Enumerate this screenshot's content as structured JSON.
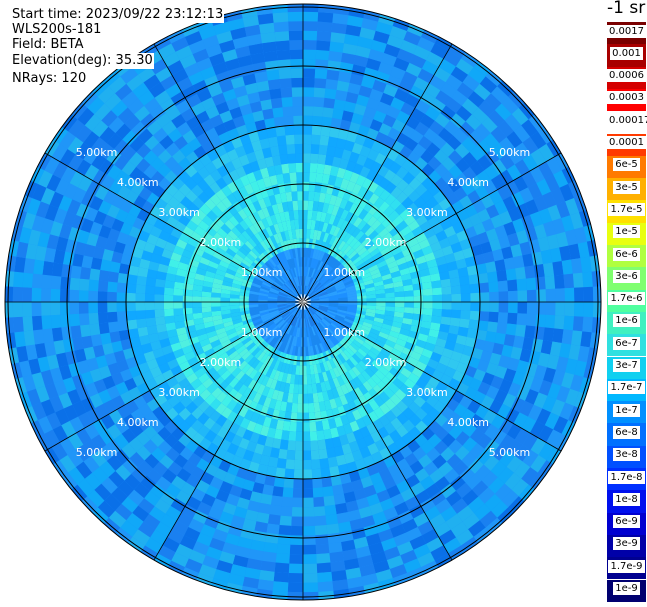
{
  "info": {
    "start_time": "Start time: 2023/09/22 23:12:13",
    "station": "WLS200s-181",
    "field": "Field: BETA",
    "elevation": "Elevation(deg): 35.30",
    "nrays": "NRays: 120"
  },
  "colorbar": {
    "title": "-1 sr",
    "labels": [
      "0.0017",
      "0.001",
      "0.0006",
      "0.0003",
      "0.00017",
      "0.0001",
      "6e-5",
      "3e-5",
      "1.7e-5",
      "1e-5",
      "6e-6",
      "3e-6",
      "1.7e-6",
      "1e-6",
      "6e-7",
      "3e-7",
      "1.7e-7",
      "1e-7",
      "6e-8",
      "3e-8",
      "1.7e-8",
      "1e-8",
      "6e-9",
      "3e-9",
      "1.7e-9",
      "1e-9"
    ],
    "colors": [
      "#7a0000",
      "#a80000",
      "#d40000",
      "#ff0000",
      "#ffffff",
      "#ff3a00",
      "#ff7a00",
      "#ffb000",
      "#ffe000",
      "#e8ff10",
      "#b0ff40",
      "#80ff70",
      "#50ffa0",
      "#40f0c0",
      "#30e0e0",
      "#10d0f0",
      "#00b8ff",
      "#0090ff",
      "#0070ff",
      "#0050ff",
      "#0030ff",
      "#0010ee",
      "#0000d0",
      "#0000a8",
      "#000090",
      "#000070"
    ]
  },
  "chart_data": {
    "type": "heatmap",
    "projection": "polar (PPI scan)",
    "field": "BETA",
    "elevation_deg": 35.3,
    "nrays": 120,
    "range_rings_km": [
      1.0,
      2.0,
      3.0,
      4.0,
      5.0
    ],
    "ring_labels": [
      "1.00km",
      "2.00km",
      "3.00km",
      "4.00km",
      "5.00km"
    ],
    "spoke_angles_deg": [
      0,
      30,
      60,
      90,
      120,
      150,
      180,
      210,
      240,
      270,
      300,
      330
    ],
    "max_range_km": 5.0,
    "typical_value_by_range": [
      {
        "range_km": 0.5,
        "beta": "3e-8"
      },
      {
        "range_km": 1.5,
        "beta": "3e-7"
      },
      {
        "range_km": 2.5,
        "beta": "1e-7"
      },
      {
        "range_km": 3.5,
        "beta": "6e-8"
      },
      {
        "range_km": 4.5,
        "beta": "6e-8"
      },
      {
        "range_km": 5.5,
        "beta": "3e-8"
      }
    ]
  }
}
